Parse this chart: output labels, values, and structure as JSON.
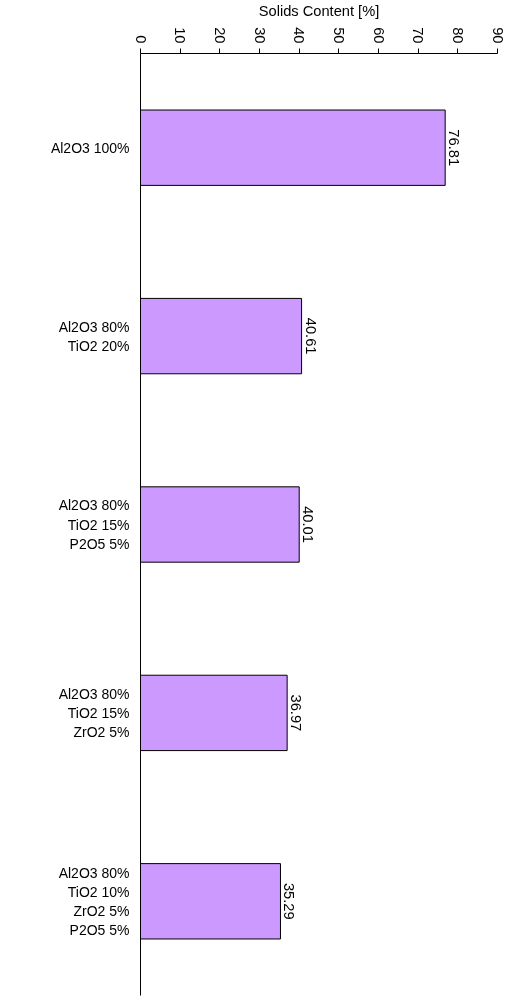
{
  "chart_data": {
    "type": "bar",
    "orientation": "horizontal",
    "xlabel": "Solids Content [%]",
    "categories": [
      "Al2O3 100%",
      "Al2O3 80%\nTiO2 20%",
      "Al2O3 80%\nTiO2 15%\nP2O5 5%",
      "Al2O3 80%\nTiO2 15%\nZrO2 5%",
      "Al2O3 80%\nTiO2 10%\nZrO2 5%\nP2O5 5%"
    ],
    "values": [
      76.81,
      40.61,
      40.01,
      36.97,
      35.29
    ],
    "color": "#cc99ff",
    "data_labels": true,
    "xlim": [
      0,
      90
    ],
    "xticks": [
      0,
      10,
      20,
      30,
      40,
      50,
      60,
      70,
      80,
      90
    ],
    "grid": false
  }
}
